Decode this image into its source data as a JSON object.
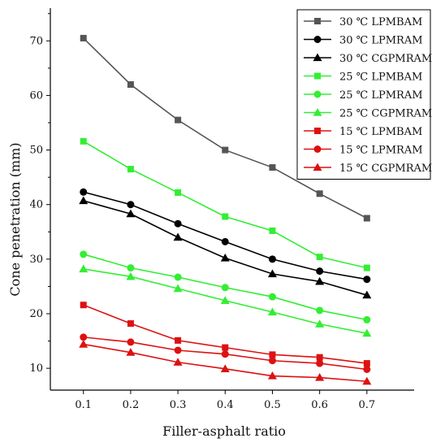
{
  "chart_data": {
    "type": "line",
    "xlabel": "Filler-asphalt ratio",
    "ylabel": "Cone penetration (mm)",
    "x": [
      0.1,
      0.2,
      0.3,
      0.4,
      0.5,
      0.6,
      0.7
    ],
    "x_ticks": [
      "0.1",
      "0.2",
      "0.3",
      "0.4",
      "0.5",
      "0.6",
      "0.7"
    ],
    "y_ticks": [
      "10",
      "20",
      "30",
      "40",
      "50",
      "60",
      "70"
    ],
    "xlim": [
      0.03,
      0.8
    ],
    "ylim": [
      6,
      76
    ],
    "grid": false,
    "legend_position": "top-right",
    "series": [
      {
        "name": "30 ℃ LPMBAM",
        "color": "#555555",
        "marker": "square",
        "values": [
          70.5,
          62.0,
          55.5,
          50.0,
          46.8,
          42.0,
          37.5
        ]
      },
      {
        "name": "30 ℃ LPMRAM",
        "color": "#000000",
        "marker": "circle",
        "values": [
          42.3,
          40.0,
          36.5,
          33.2,
          30.0,
          27.8,
          26.3
        ]
      },
      {
        "name": "30 ℃ CGPMRAM",
        "color": "#000000",
        "marker": "triangle",
        "values": [
          40.7,
          38.3,
          34.0,
          30.2,
          27.3,
          25.9,
          23.4
        ]
      },
      {
        "name": "25 ℃ LPMBAM",
        "color": "#33ee33",
        "marker": "square",
        "values": [
          51.6,
          46.5,
          42.2,
          37.8,
          35.2,
          30.4,
          28.4
        ]
      },
      {
        "name": "25 ℃ LPMRAM",
        "color": "#33ee33",
        "marker": "circle",
        "values": [
          30.9,
          28.4,
          26.7,
          24.8,
          23.1,
          20.6,
          18.9
        ]
      },
      {
        "name": "25 ℃ CGPMRAM",
        "color": "#33ee33",
        "marker": "triangle",
        "values": [
          28.2,
          26.8,
          24.6,
          22.4,
          20.3,
          18.1,
          16.4
        ]
      },
      {
        "name": "15 ℃ LPMBAM",
        "color": "#dd1111",
        "marker": "square",
        "values": [
          21.6,
          18.2,
          15.1,
          13.8,
          12.5,
          12.0,
          10.9
        ]
      },
      {
        "name": "15 ℃ LPMRAM",
        "color": "#dd1111",
        "marker": "circle",
        "values": [
          15.7,
          14.8,
          13.3,
          12.6,
          11.4,
          10.9,
          9.8
        ]
      },
      {
        "name": "15 ℃ CGPMRAM",
        "color": "#dd1111",
        "marker": "triangle",
        "values": [
          14.4,
          12.9,
          11.1,
          9.9,
          8.6,
          8.3,
          7.6
        ]
      }
    ]
  }
}
